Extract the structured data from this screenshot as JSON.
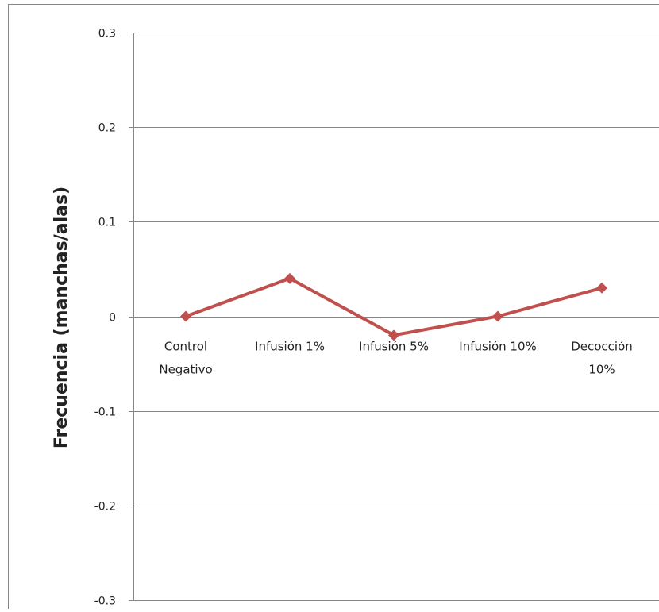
{
  "chart_data": {
    "type": "line",
    "title": "",
    "xlabel": "",
    "ylabel": "Frecuencia (manchas/alas)",
    "categories": [
      [
        "Control",
        "Negativo"
      ],
      [
        "Infusión 1%"
      ],
      [
        "Infusión 5%"
      ],
      [
        "Infusión 10%"
      ],
      [
        "Decocción",
        "10%"
      ]
    ],
    "series": [
      {
        "values": [
          0,
          0.04,
          -0.02,
          0,
          0.03
        ],
        "color": "#c0504d",
        "marker": "diamond"
      }
    ],
    "ylim": [
      -0.3,
      0.3
    ],
    "yticks": [
      0.3,
      0.2,
      0.1,
      0,
      -0.1,
      -0.2,
      -0.3
    ],
    "ytick_labels": [
      "0.3",
      "0.2",
      "0.1",
      "0",
      "-0.1",
      "-0.2",
      "-0.3"
    ],
    "grid": true,
    "legend": "none",
    "gridline_color": "#868686",
    "axis_color": "#868686"
  }
}
